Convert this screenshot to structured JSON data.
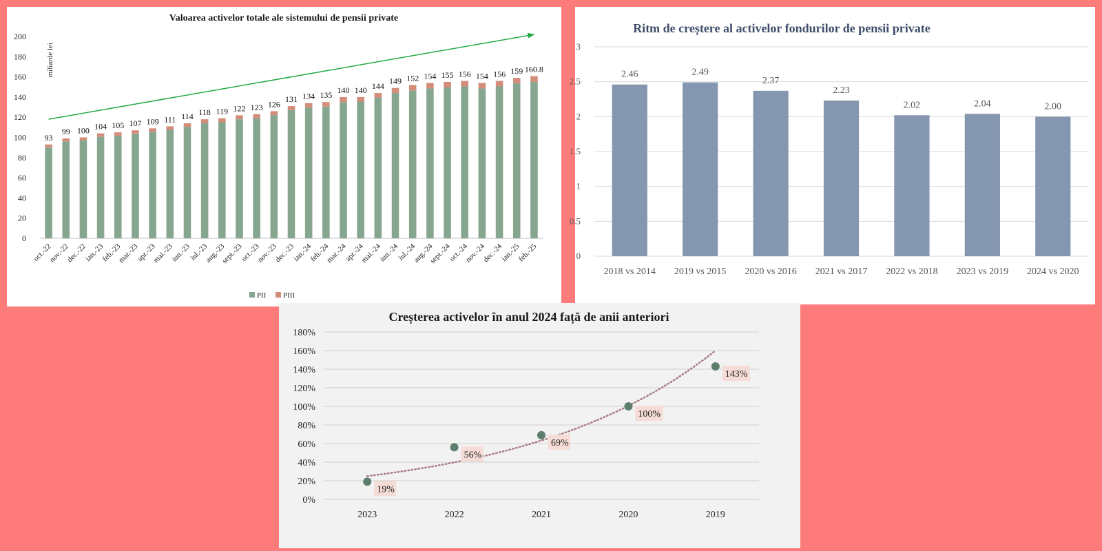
{
  "charts": [
    {
      "id": "assets",
      "chart_data": {
        "type": "bar",
        "stacked": true,
        "title": "Valoarea activelor totale ale sistemului de pensii private",
        "ylabel": "miliarde  lei",
        "ylim": [
          0,
          200
        ],
        "yticks": [
          0,
          20,
          40,
          60,
          80,
          100,
          120,
          140,
          160,
          180,
          200
        ],
        "categories": [
          "oct.-22",
          "nov.-22",
          "dec.-22",
          "ian.-23",
          "feb.-23",
          "mar.-23",
          "apr.-23",
          "mai.-23",
          "iun.-23",
          "iul.-23",
          "aug.-23",
          "sept.-23",
          "oct.-23",
          "nov.-23",
          "dec.-23",
          "ian.-24",
          "feb.-24",
          "mar.-24",
          "apr.-24",
          "mai.-24",
          "iun.-24",
          "iul.-24",
          "aug.-24",
          "sept.-24",
          "oct.-24",
          "nov.-24",
          "dec.-24",
          "ian.-25",
          "feb.-25"
        ],
        "series": [
          {
            "name": "PII",
            "color": "#86a690",
            "values": [
              90,
              96,
              97,
              100.5,
              101.5,
              103.5,
              105.5,
              107.5,
              110.5,
              114,
              115,
              118,
              119,
              122,
              127,
              129.5,
              130.5,
              135,
              135.5,
              139.5,
              144,
              146.5,
              148.5,
              149.5,
              150.5,
              148.5,
              150.5,
              153.5,
              155
            ]
          },
          {
            "name": "PIII",
            "color": "#d48d7a",
            "values": [
              3,
              3,
              3,
              3.5,
              3.5,
              3.5,
              3.5,
              3.5,
              3.5,
              4,
              4,
              4,
              4,
              4,
              4,
              4.5,
              4.5,
              5,
              4.5,
              4.5,
              5,
              5.5,
              5.5,
              5.5,
              5.5,
              5.5,
              5.5,
              5.5,
              5.8
            ]
          }
        ],
        "totals": [
          "93",
          "99",
          "100",
          "104",
          "105",
          "107",
          "109",
          "111",
          "114",
          "118",
          "119",
          "122",
          "123",
          "126",
          "131",
          "134",
          "135",
          "140",
          "140",
          "144",
          "149",
          "152",
          "154",
          "155",
          "156",
          "154",
          "156",
          "159",
          "160.8"
        ],
        "trend": {
          "color": "#22aa44",
          "from": {
            "category": "oct.-22",
            "value": 118
          },
          "to": {
            "category": "feb.-25",
            "value": 202
          }
        },
        "legend": "bottom"
      }
    },
    {
      "id": "growth_rhythm",
      "chart_data": {
        "type": "bar",
        "title": "Ritm de creștere al activelor fondurilor de pensii private",
        "ylim": [
          0,
          3
        ],
        "yticks": [
          "0",
          "0.5",
          "1",
          "1.5",
          "2",
          "2.5",
          "3"
        ],
        "categories": [
          "2018 vs 2014",
          "2019 vs 2015",
          "2020 vs 2016",
          "2021 vs 2017",
          "2022 vs 2018",
          "2023 vs 2019",
          "2024 vs 2020"
        ],
        "values": [
          2.46,
          2.49,
          2.37,
          2.23,
          2.02,
          2.04,
          2.0
        ],
        "labels": [
          "2.46",
          "2.49",
          "2.37",
          "2.23",
          "2.02",
          "2.04",
          "2.00"
        ],
        "color": "#8597b0"
      }
    },
    {
      "id": "growth_2024",
      "chart_data": {
        "type": "scatter",
        "title": "Creșterea activelor în anul 2024 față  de anii anteriori",
        "ylim": [
          0,
          180
        ],
        "yticks": [
          "0%",
          "20%",
          "40%",
          "60%",
          "80%",
          "100%",
          "120%",
          "140%",
          "160%",
          "180%"
        ],
        "categories": [
          "2023",
          "2022",
          "2021",
          "2020",
          "2019"
        ],
        "values": [
          19,
          56,
          69,
          100,
          143
        ],
        "labels": [
          "19%",
          "56%",
          "69%",
          "100%",
          "143%"
        ],
        "marker_color": "#5d7d6d",
        "label_bg": "#f5dcd6",
        "trendline": {
          "type": "exponential",
          "style": "dotted",
          "color": "#a87a80",
          "start_value": 25,
          "end_value": 160
        }
      }
    }
  ]
}
